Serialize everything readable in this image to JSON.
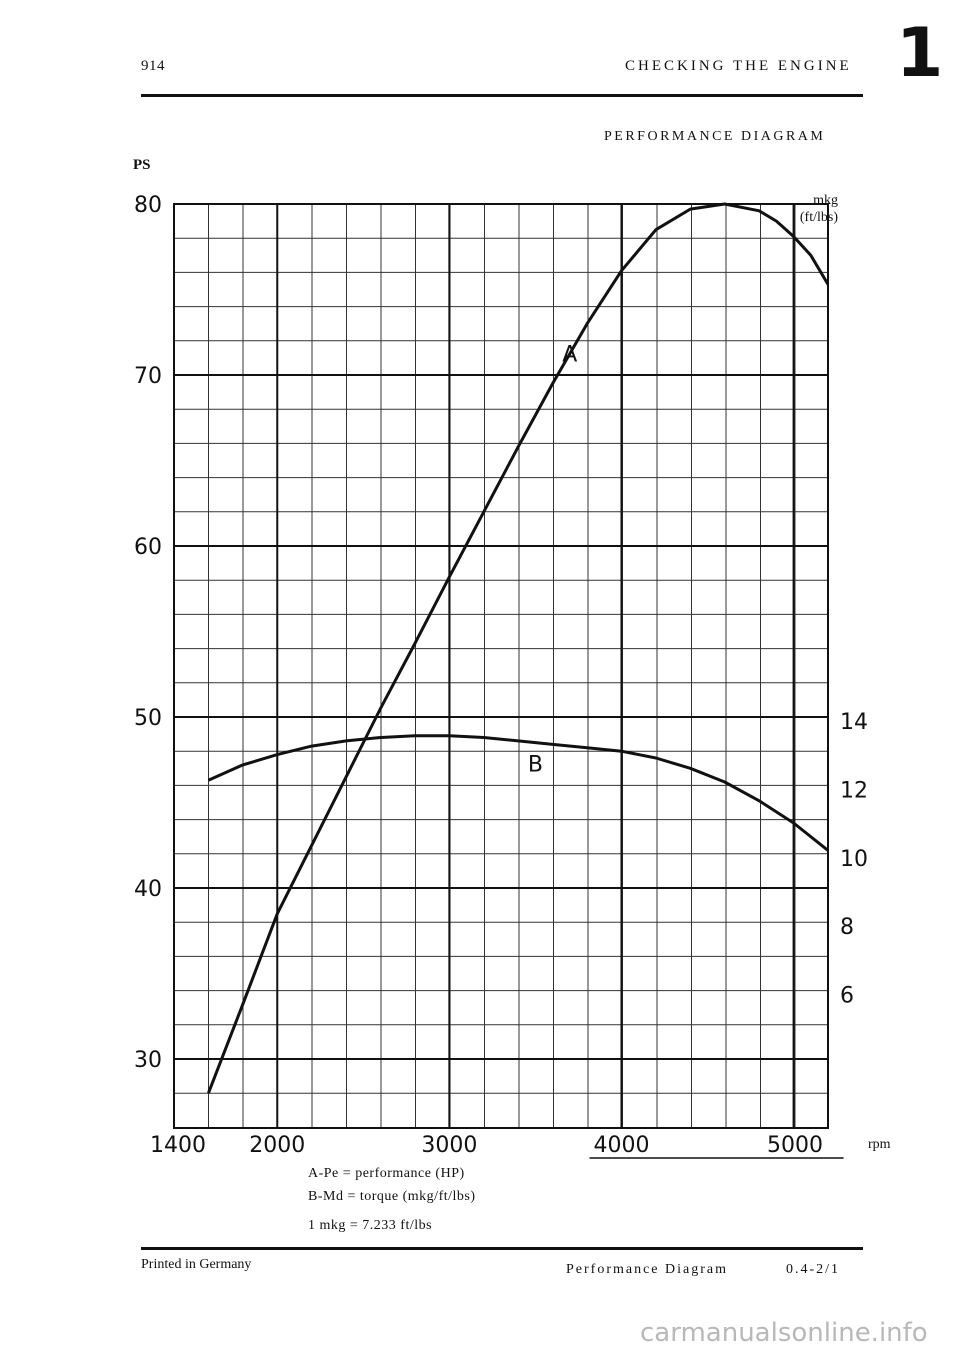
{
  "header": {
    "model": "914",
    "section_title": "CHECKING THE ENGINE",
    "chapter_number": "1",
    "subtitle": "PERFORMANCE DIAGRAM"
  },
  "footer": {
    "printed": "Printed in Germany",
    "page_title": "Performance Diagram",
    "page_code": "0.4-2/1"
  },
  "watermark": "carmanualsonline.info",
  "legend": [
    {
      "key": "A-Pe",
      "text": "performance (HP)"
    },
    {
      "key": "B-Md",
      "text": "torque (mkg/ft/lbs)"
    },
    {
      "key": "1 mkg",
      "text": "7.233 ft/lbs"
    }
  ],
  "chart_data": {
    "type": "line",
    "y_left_label": "PS",
    "y_right_label": "mkg",
    "y_right_sublabel": "(ft/lbs)",
    "x_label": "rpm",
    "x_ticks": [
      "1400",
      "2000",
      "3000",
      "4000",
      "5000"
    ],
    "x_tick_values": [
      1400,
      2000,
      3000,
      4000,
      5000
    ],
    "xlim": [
      1400,
      5200
    ],
    "y_left_ticks": [
      "80",
      "70",
      "60",
      "50",
      "40",
      "30"
    ],
    "y_left_tick_values": [
      80,
      70,
      60,
      50,
      40,
      30
    ],
    "ylim_left": [
      27,
      80
    ],
    "y_right_ticks": [
      "14",
      "12",
      "10",
      "8",
      "6"
    ],
    "y_right_tick_values": [
      14,
      12,
      10,
      8,
      6
    ],
    "grid": true,
    "series": [
      {
        "name": "A",
        "axis": "left",
        "x": [
          1600,
          1800,
          2000,
          2200,
          2400,
          2600,
          2800,
          3000,
          3200,
          3400,
          3600,
          3800,
          4000,
          4200,
          4400,
          4600,
          4800,
          4900,
          5000,
          5100,
          5200
        ],
        "y": [
          28.0,
          33.2,
          38.5,
          42.5,
          46.5,
          50.5,
          54.3,
          58.2,
          62.0,
          65.8,
          69.5,
          73.0,
          76.1,
          78.5,
          79.7,
          80.0,
          79.6,
          79.0,
          78.1,
          77.0,
          75.3
        ]
      },
      {
        "name": "B",
        "axis": "left",
        "x": [
          1600,
          1800,
          2000,
          2200,
          2400,
          2600,
          2800,
          3000,
          3200,
          3400,
          3600,
          3800,
          4000,
          4200,
          4400,
          4600,
          4800,
          5000,
          5200
        ],
        "y": [
          46.3,
          47.2,
          47.8,
          48.3,
          48.6,
          48.8,
          48.9,
          48.9,
          48.8,
          48.6,
          48.4,
          48.2,
          48.0,
          47.6,
          47.0,
          46.2,
          45.1,
          43.8,
          42.2
        ]
      }
    ],
    "annotations": [
      {
        "text": "A",
        "x": 3700,
        "y": 70.8
      },
      {
        "text": "B",
        "x": 3500,
        "y": 46.8
      }
    ]
  }
}
